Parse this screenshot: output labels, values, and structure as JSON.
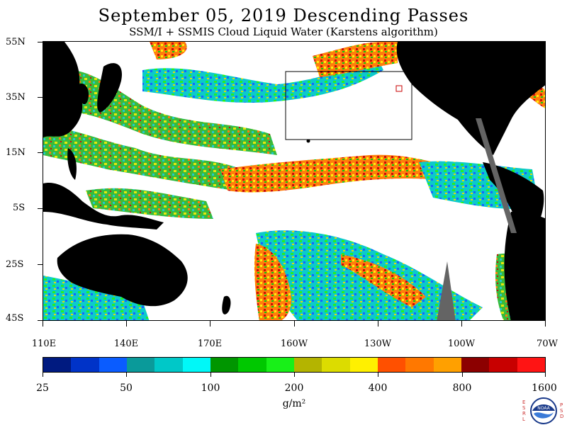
{
  "title": "September 05, 2019  Descending Passes",
  "subtitle": "SSM/I + SSMIS Cloud Liquid Water (Karstens algorithm)",
  "lat_labels": [
    "55N",
    "35N",
    "15N",
    "5S",
    "25S",
    "45S"
  ],
  "lon_labels": [
    "110E",
    "140E",
    "170E",
    "160W",
    "130W",
    "100W",
    "70W"
  ],
  "colorbar": {
    "colors": [
      "#001a80",
      "#0033c8",
      "#0a5cff",
      "#0a9a9a",
      "#00c8c8",
      "#00f8f8",
      "#009600",
      "#00c800",
      "#18f018",
      "#b4b400",
      "#dcdc00",
      "#fff000",
      "#ff5000",
      "#ff7800",
      "#ffa000",
      "#8c0000",
      "#c80000",
      "#ff1414"
    ],
    "labels": [
      "25",
      "50",
      "100",
      "200",
      "400",
      "800",
      "1600"
    ]
  },
  "units": "g/m²",
  "logo": {
    "left_letters": "E S R L",
    "right_letters": "P S D",
    "center_text": "NOAA"
  },
  "colors": {
    "land": "#000000",
    "no_data": "#646464",
    "background": "#ffffff"
  }
}
